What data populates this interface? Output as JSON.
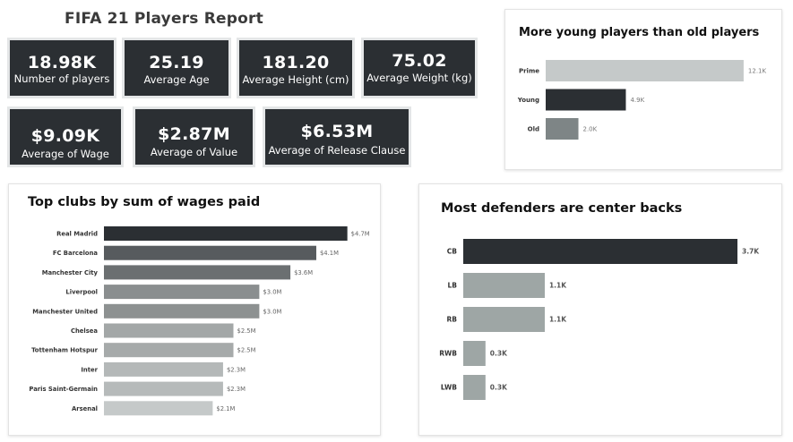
{
  "report": {
    "title": "FIFA 21 Players Report"
  },
  "kpis": [
    {
      "value": "18.98K",
      "label": "Number of players"
    },
    {
      "value": "25.19",
      "label": "Average Age"
    },
    {
      "value": "181.20",
      "label": "Average Height (cm)"
    },
    {
      "value": "75.02",
      "label": "Average Weight (kg)"
    },
    {
      "value": "$9.09K",
      "label": "Average of Wage"
    },
    {
      "value": "$2.87M",
      "label": "Average of Value"
    },
    {
      "value": "$6.53M",
      "label": "Average of Release Clause"
    }
  ],
  "colors": {
    "kpi_bg": "#2b2f33",
    "dark": "#2b2f33",
    "mid": "#575b5e",
    "light": "#c5c9c9",
    "slate": "#7e8586",
    "sage": "#9ea6a5"
  },
  "chart_data": [
    {
      "id": "age_groups",
      "type": "bar",
      "orientation": "horizontal",
      "title": "More young players than old players",
      "categories": [
        "Prime",
        "Young",
        "Old"
      ],
      "values": [
        12100,
        4900,
        2000
      ],
      "data_labels": [
        "12.1K",
        "4.9K",
        "2.0K"
      ],
      "colors": [
        "#c5c9c9",
        "#2b2f33",
        "#7e8586"
      ],
      "xlim": [
        0,
        13200
      ],
      "grid": false
    },
    {
      "id": "club_wages",
      "type": "bar",
      "orientation": "horizontal",
      "title": "Top clubs by sum of wages paid",
      "categories": [
        "Real Madrid",
        "FC Barcelona",
        "Manchester City",
        "Liverpool",
        "Manchester United",
        "Chelsea",
        "Tottenham Hotspur",
        "Inter",
        "Paris Saint-Germain",
        "Arsenal"
      ],
      "values": [
        4.7,
        4.1,
        3.6,
        3.0,
        3.0,
        2.5,
        2.5,
        2.3,
        2.3,
        2.1
      ],
      "data_labels": [
        "$4.7M",
        "$4.1M",
        "$3.6M",
        "$3.0M",
        "$3.0M",
        "$2.5M",
        "$2.5M",
        "$2.3M",
        "$2.3M",
        "$2.1M"
      ],
      "colors": [
        "#2b2f33",
        "#575b5e",
        "#6b6f71",
        "#8a8e8f",
        "#8d9191",
        "#a3a7a7",
        "#a6aaaa",
        "#b4b8b8",
        "#b6baba",
        "#c5c9c9"
      ],
      "xlim": [
        0,
        5.0
      ],
      "grid": false
    },
    {
      "id": "defender_positions",
      "type": "bar",
      "orientation": "horizontal",
      "title": "Most defenders are center backs",
      "categories": [
        "CB",
        "LB",
        "RB",
        "RWB",
        "LWB"
      ],
      "values": [
        3700,
        1100,
        1100,
        300,
        300
      ],
      "data_labels": [
        "3.7K",
        "1.1K",
        "1.1K",
        "0.3K",
        "0.3K"
      ],
      "colors": [
        "#2b2f33",
        "#9ea6a5",
        "#9ea6a5",
        "#9ea6a5",
        "#9ea6a5"
      ],
      "xlim": [
        0,
        3700
      ],
      "grid": false
    }
  ]
}
